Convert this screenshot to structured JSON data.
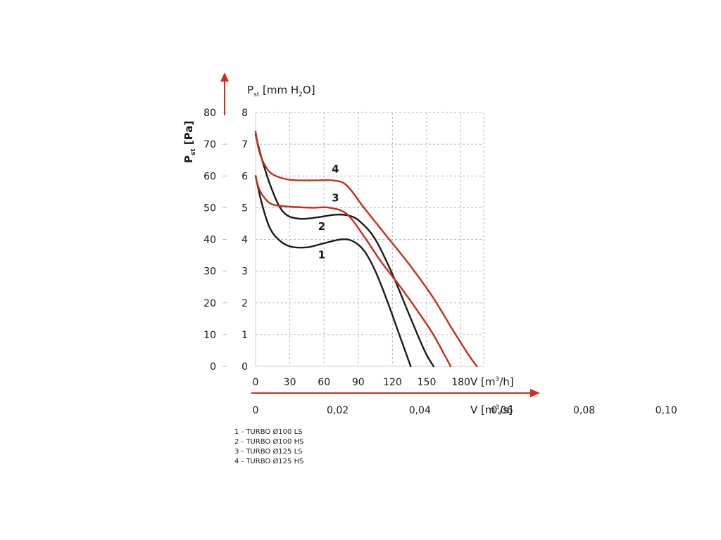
{
  "chart_data": {
    "type": "line",
    "title": "",
    "grid": true,
    "x_axis": {
      "label_main": "V [m",
      "label_sup": "3",
      "label_tail": "/h]",
      "range": [
        0,
        200
      ],
      "ticks": [
        0,
        30,
        60,
        90,
        120,
        150,
        180
      ]
    },
    "x_axis_secondary": {
      "label_main": "V [m",
      "label_sup": "3",
      "label_tail": "/s]",
      "ticks": [
        {
          "value": 0,
          "label": "0"
        },
        {
          "value": 0.02,
          "label": "0,02"
        },
        {
          "value": 0.04,
          "label": "0,04"
        },
        {
          "value": 0.06,
          "label": "0,06"
        },
        {
          "value": 0.08,
          "label": "0,08"
        },
        {
          "value": 0.1,
          "label": "0,10"
        }
      ]
    },
    "y_axis": {
      "label_main": "P",
      "label_sub": "st",
      "label_tail": " [Pa]",
      "range": [
        0,
        80
      ],
      "ticks": [
        0,
        10,
        20,
        30,
        40,
        50,
        60,
        70,
        80
      ]
    },
    "y_axis_secondary": {
      "label_main": "P",
      "label_sub": "st",
      "label_mid": " [mm H",
      "label_sub2": "2",
      "label_tail": "O]",
      "ticks": [
        0,
        1,
        2,
        3,
        4,
        5,
        6,
        7,
        8
      ]
    },
    "series": [
      {
        "name": "1",
        "color": "#1a1a1a",
        "label_at": [
          58,
          34
        ],
        "points": [
          [
            0,
            60
          ],
          [
            5,
            52
          ],
          [
            12,
            44
          ],
          [
            20,
            40
          ],
          [
            30,
            37.8
          ],
          [
            45,
            37.5
          ],
          [
            60,
            38.8
          ],
          [
            75,
            40
          ],
          [
            85,
            39.5
          ],
          [
            95,
            36.5
          ],
          [
            105,
            30
          ],
          [
            115,
            21
          ],
          [
            125,
            11
          ],
          [
            132,
            4
          ],
          [
            136,
            0
          ]
        ]
      },
      {
        "name": "2",
        "color": "#1a1a1a",
        "label_at": [
          58,
          43
        ],
        "points": [
          [
            0,
            73
          ],
          [
            5,
            66
          ],
          [
            12,
            58
          ],
          [
            20,
            51
          ],
          [
            28,
            47.5
          ],
          [
            40,
            46.5
          ],
          [
            55,
            47
          ],
          [
            70,
            47.8
          ],
          [
            82,
            47.5
          ],
          [
            92,
            45.5
          ],
          [
            105,
            40
          ],
          [
            120,
            29
          ],
          [
            135,
            16
          ],
          [
            148,
            5
          ],
          [
            156,
            0
          ]
        ]
      },
      {
        "name": "3",
        "color": "#cc2b1a",
        "label_at": [
          70,
          52
        ],
        "points": [
          [
            0,
            60
          ],
          [
            3,
            56
          ],
          [
            8,
            53
          ],
          [
            15,
            51
          ],
          [
            30,
            50.3
          ],
          [
            50,
            50
          ],
          [
            65,
            50
          ],
          [
            80,
            48
          ],
          [
            95,
            41
          ],
          [
            110,
            33
          ],
          [
            125,
            26
          ],
          [
            140,
            18.5
          ],
          [
            155,
            10.5
          ],
          [
            165,
            4
          ],
          [
            171,
            0
          ]
        ]
      },
      {
        "name": "4",
        "color": "#cc2b1a",
        "label_at": [
          70,
          61
        ],
        "points": [
          [
            0,
            74
          ],
          [
            3,
            68
          ],
          [
            8,
            63.5
          ],
          [
            15,
            60.5
          ],
          [
            30,
            58.8
          ],
          [
            50,
            58.6
          ],
          [
            68,
            58.6
          ],
          [
            80,
            57
          ],
          [
            95,
            50
          ],
          [
            115,
            41
          ],
          [
            135,
            32
          ],
          [
            155,
            22
          ],
          [
            172,
            12
          ],
          [
            186,
            4
          ],
          [
            194,
            0
          ]
        ]
      }
    ],
    "legend": [
      "1 - TURBO Ø100 LS",
      "2 - TURBO Ø100 HS",
      "3 - TURBO Ø125 LS",
      "4 - TURBO Ø125 HS"
    ],
    "colors": {
      "grid": "#b8b8b8",
      "axis_arrow": "#d42a1a",
      "frame": "#cfcfcf"
    }
  }
}
